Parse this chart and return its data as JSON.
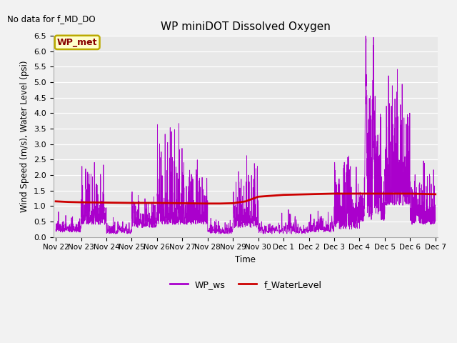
{
  "title": "WP miniDOT Dissolved Oxygen",
  "subtitle": "No data for f_MD_DO",
  "ylabel": "Wind Speed (m/s), Water Level (psi)",
  "xlabel": "Time",
  "ylim": [
    0.0,
    6.5
  ],
  "yticks": [
    0.0,
    0.5,
    1.0,
    1.5,
    2.0,
    2.5,
    3.0,
    3.5,
    4.0,
    4.5,
    5.0,
    5.5,
    6.0,
    6.5
  ],
  "wp_ws_color": "#aa00cc",
  "f_wl_color": "#cc0000",
  "legend_label_ws": "WP_ws",
  "legend_label_wl": "f_WaterLevel",
  "box_label": "WP_met",
  "box_facecolor": "#ffffcc",
  "box_edgecolor": "#bbaa00",
  "box_textcolor": "#880000",
  "fig_facecolor": "#f2f2f2",
  "plot_bg_color": "#e8e8e8",
  "grid_color": "#ffffff",
  "seed": 42
}
